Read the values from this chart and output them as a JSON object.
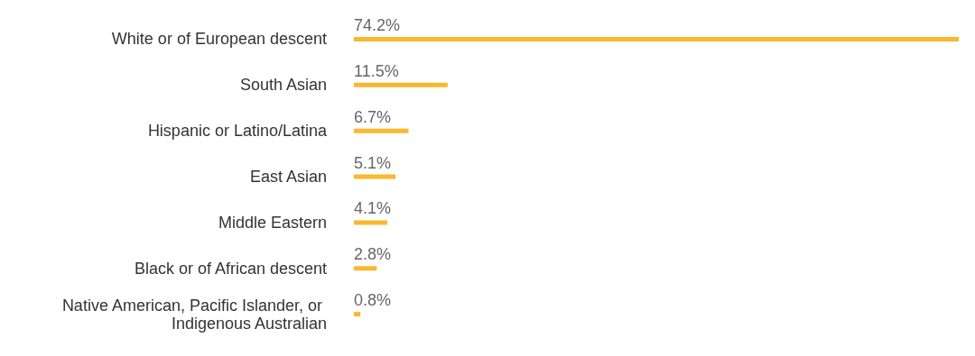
{
  "chart_data": {
    "type": "bar",
    "orientation": "horizontal",
    "categories": [
      "White or of European descent",
      "South Asian",
      "Hispanic or Latino/Latina",
      "East Asian",
      "Middle Eastern",
      "Black or of African descent",
      "Native American, Pacific Islander, or Indigenous Australian"
    ],
    "values": [
      74.2,
      11.5,
      6.7,
      5.1,
      4.1,
      2.8,
      0.8
    ],
    "value_labels": [
      "74.2%",
      "11.5%",
      "6.7%",
      "5.1%",
      "4.1%",
      "2.8%",
      "0.8%"
    ],
    "color": "#f9b82e",
    "tick_labels": "y"
  }
}
